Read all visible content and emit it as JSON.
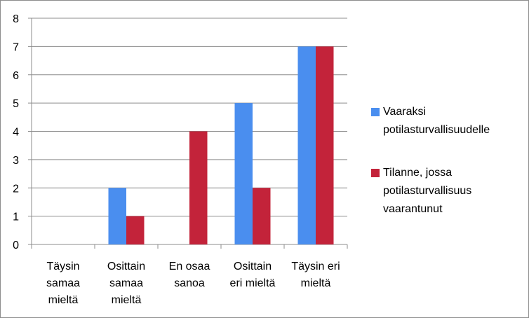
{
  "chart_data": {
    "type": "bar",
    "categories": [
      [
        "Täysin",
        "samaa",
        "mieltä"
      ],
      [
        "Osittain",
        "samaa",
        "mieltä"
      ],
      [
        "En osaa",
        "sanoa"
      ],
      [
        "Osittain",
        "eri mieltä"
      ],
      [
        "Täysin eri",
        "mieltä"
      ]
    ],
    "series": [
      {
        "name": [
          "Vaaraksi",
          "potilasturvallisuudelle"
        ],
        "color": "#4a8eef",
        "values": [
          0,
          2,
          0,
          5,
          7
        ]
      },
      {
        "name": [
          "Tilanne, jossa",
          "potilasturvallisuus",
          "vaarantunut"
        ],
        "color": "#c3233a",
        "values": [
          0,
          1,
          4,
          2,
          7
        ]
      }
    ],
    "ylim": [
      0,
      8
    ],
    "yticks": [
      "0",
      "1",
      "2",
      "3",
      "4",
      "5",
      "6",
      "7",
      "8"
    ],
    "grid": "horizontal",
    "legend": "right"
  }
}
